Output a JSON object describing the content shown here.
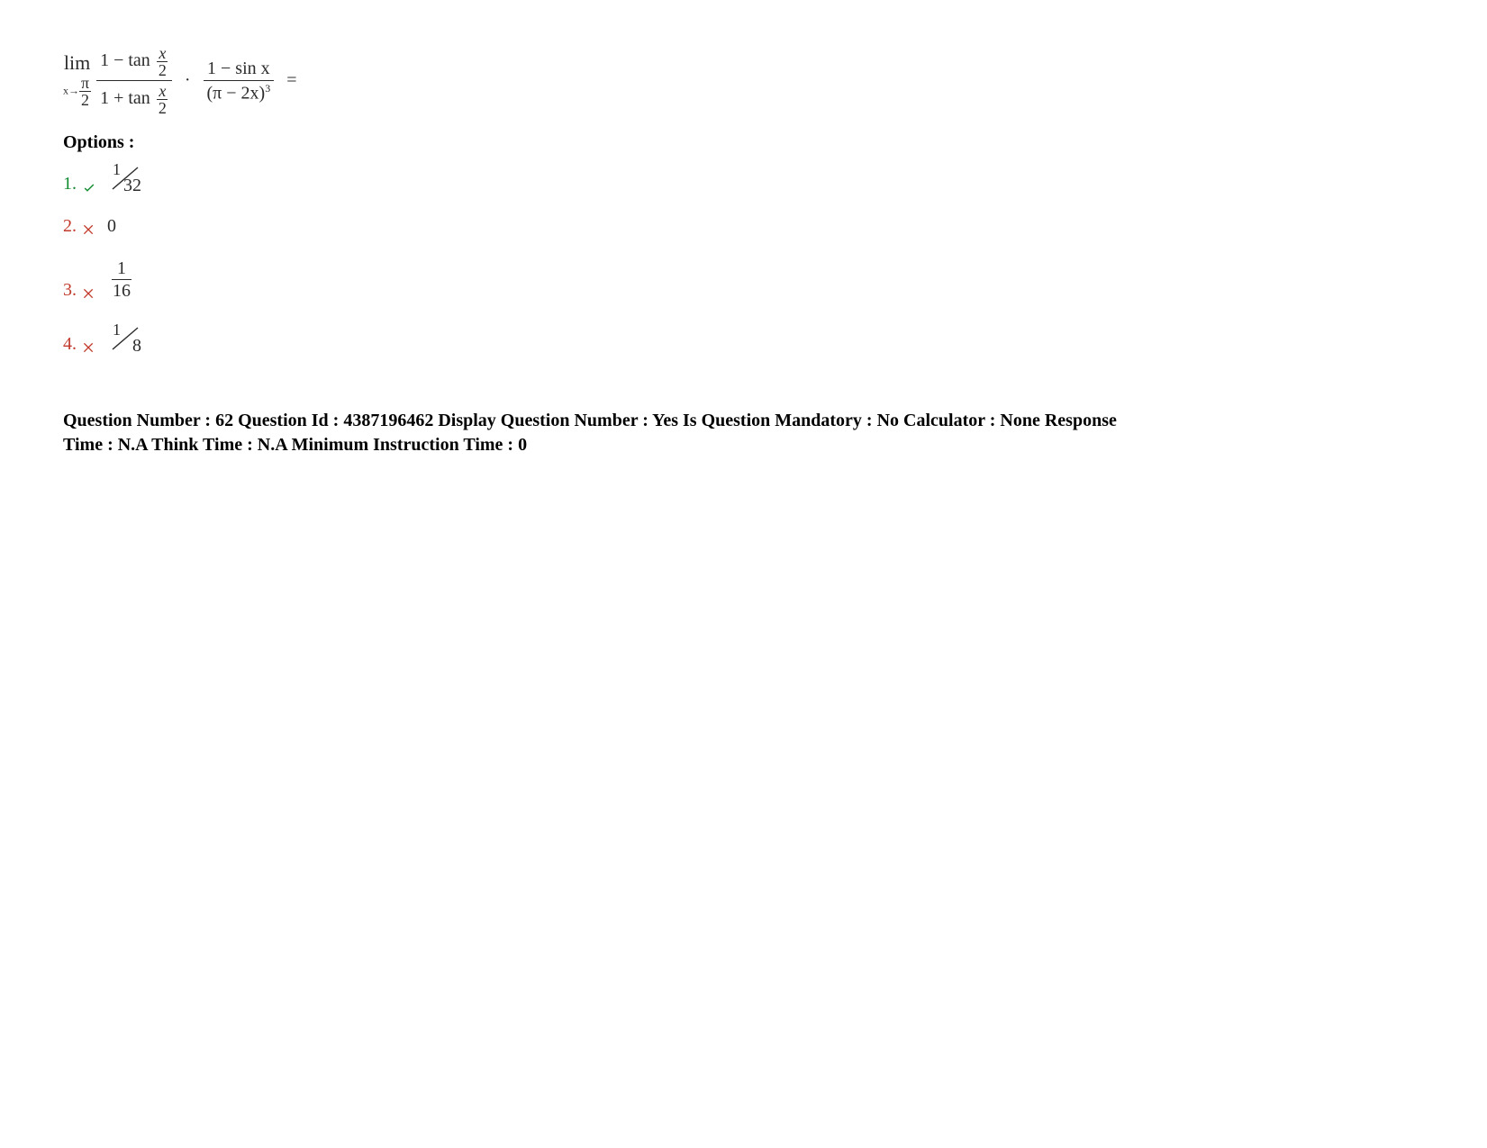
{
  "question": {
    "lim_label": "lim",
    "lim_subscript_left": "x→",
    "lim_subscript_frac_n": "π",
    "lim_subscript_frac_d": "2",
    "frac1_num_prefix": "1 − tan",
    "frac1_num_var_n": "x",
    "frac1_num_var_d": "2",
    "frac1_den_prefix": "1 + tan",
    "frac1_den_var_n": "x",
    "frac1_den_var_d": "2",
    "dot": "·",
    "frac2_num": "1 − sin x",
    "frac2_den_open": "(",
    "frac2_den_inner": "π − 2x",
    "frac2_den_close": ")",
    "frac2_den_power": "3",
    "equals": "="
  },
  "options_label": "Options :",
  "options": [
    {
      "num": "1.",
      "status": "correct",
      "type": "slashfrac",
      "n": "1",
      "d": "32"
    },
    {
      "num": "2.",
      "status": "wrong",
      "type": "plain",
      "text": "0"
    },
    {
      "num": "3.",
      "status": "wrong",
      "type": "hfrac",
      "n": "1",
      "d": "16"
    },
    {
      "num": "4.",
      "status": "wrong",
      "type": "slashfrac",
      "n": "1",
      "d": "8"
    }
  ],
  "meta": {
    "text": "Question Number : 62 Question Id : 4387196462 Display Question Number : Yes Is Question Mandatory : No Calculator : None Response Time : N.A Think Time : N.A Minimum Instruction Time : 0"
  },
  "colors": {
    "correct": "#118a2f",
    "wrong": "#c1392b",
    "text": "#000000",
    "math": "#2b2b2b",
    "background": "#ffffff"
  }
}
